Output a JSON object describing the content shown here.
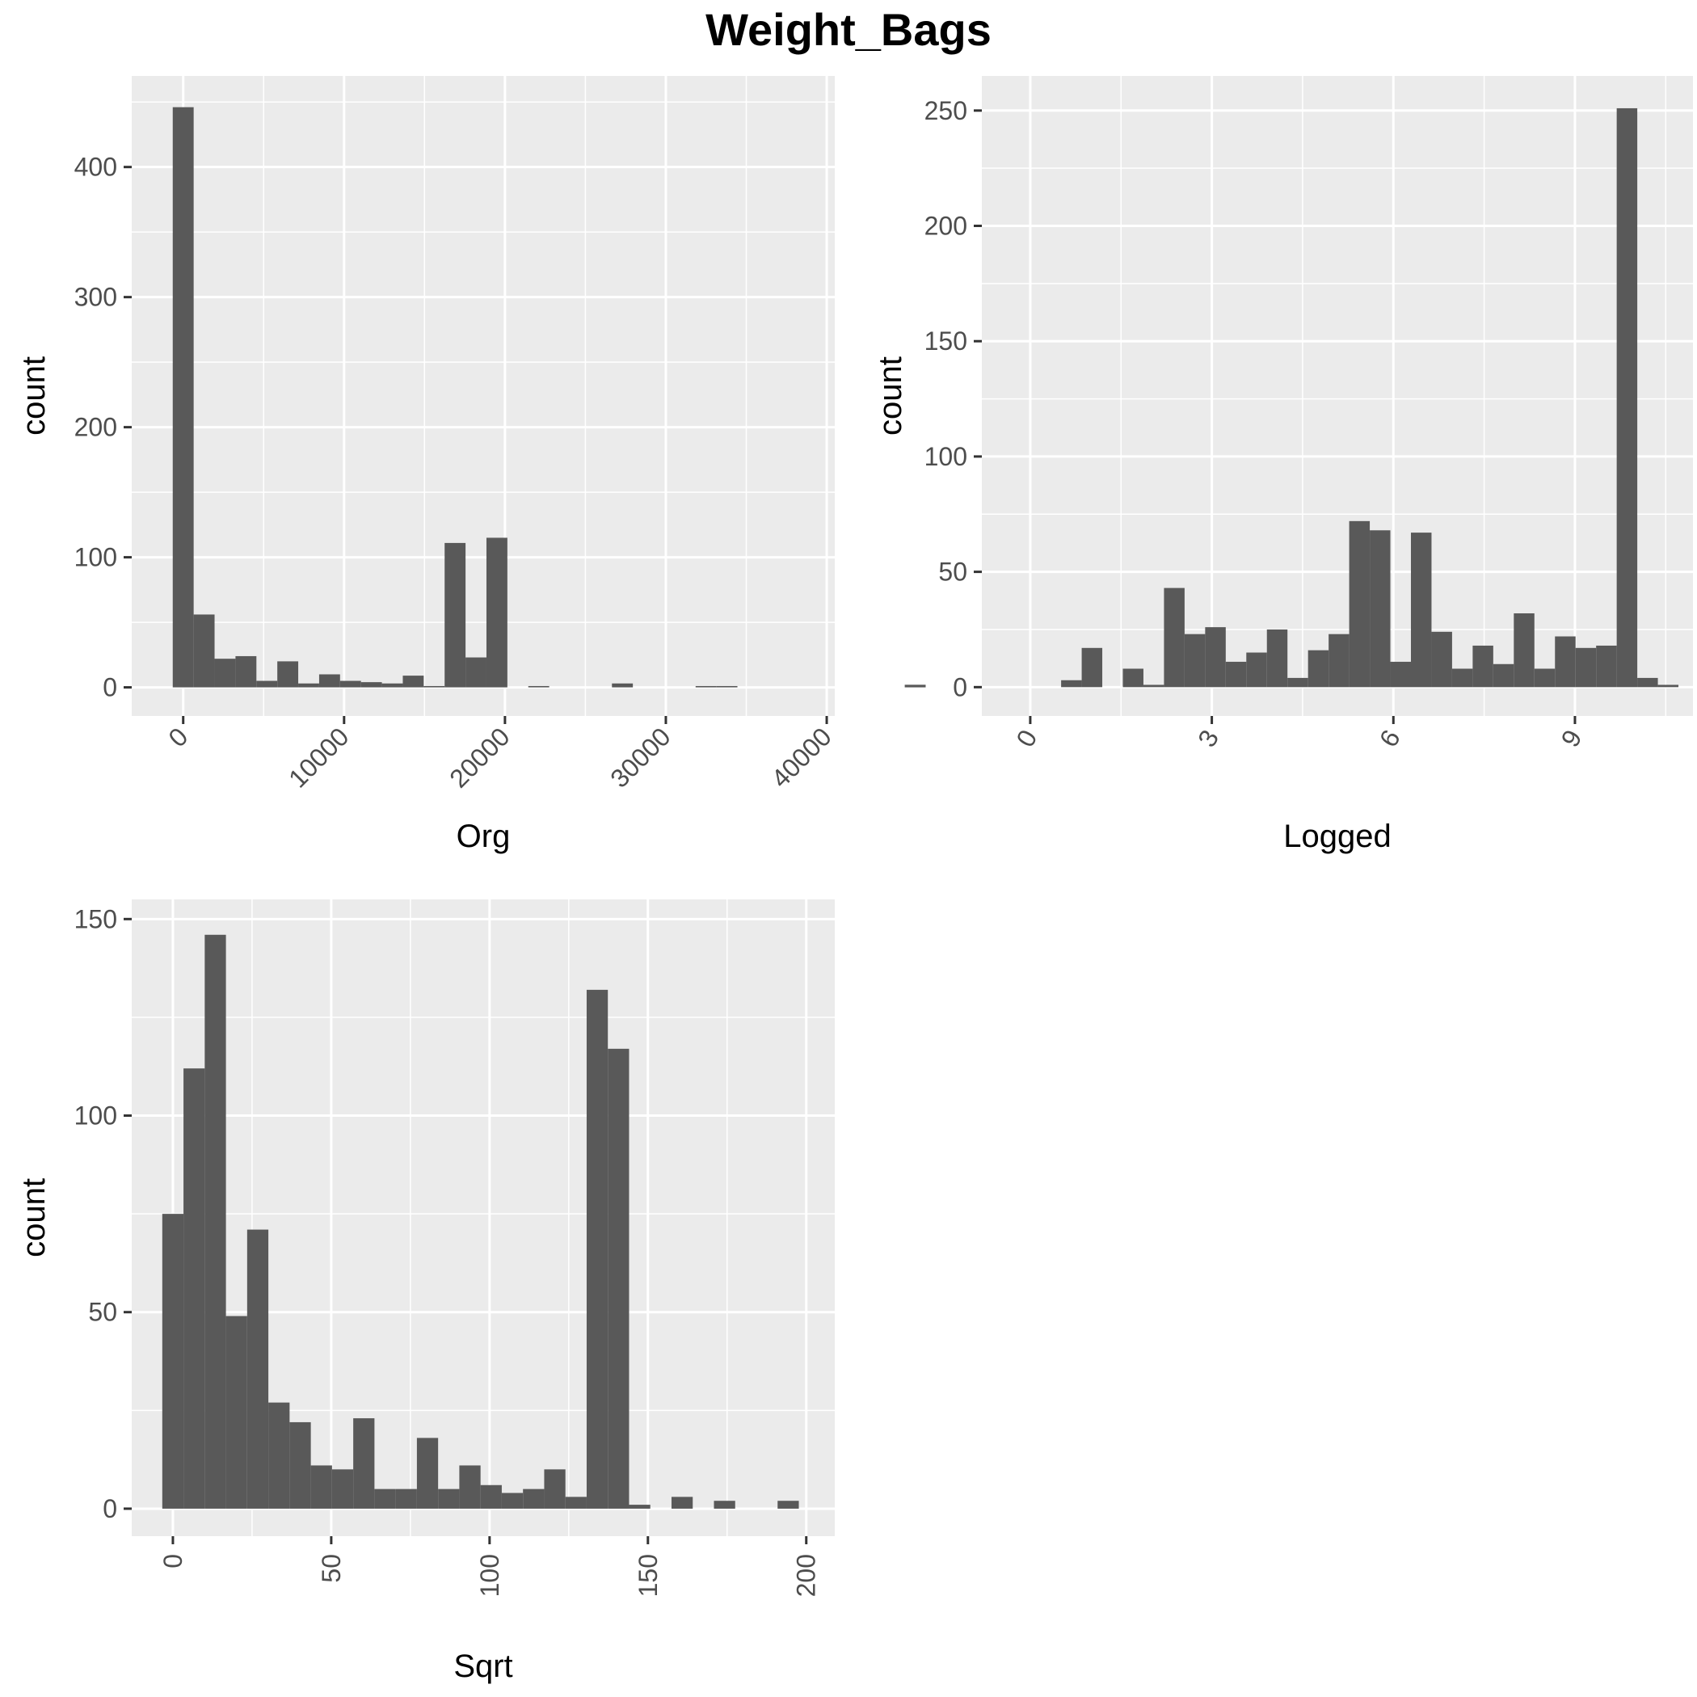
{
  "title": "Weight_Bags",
  "chart_data": [
    {
      "type": "bar",
      "subtype": "histogram",
      "xlabel": "Org",
      "ylabel": "count",
      "xlim": [
        -3200,
        40500
      ],
      "ylim": [
        -22,
        470
      ],
      "x_breaks": [
        0,
        10000,
        20000,
        30000,
        40000
      ],
      "x_tick_labels": [
        "0",
        "10000",
        "20000",
        "30000",
        "40000"
      ],
      "x_minor_breaks": [
        -5000,
        5000,
        15000,
        25000,
        35000
      ],
      "y_breaks": [
        0,
        100,
        200,
        300,
        400
      ],
      "y_tick_labels": [
        "0",
        "100",
        "200",
        "300",
        "400"
      ],
      "y_minor_breaks": [
        50,
        150,
        250,
        350,
        450
      ],
      "x_tick_angle": 45,
      "grid": true,
      "bin_width": 1300,
      "bin_start": -650,
      "values": [
        446,
        56,
        22,
        24,
        5,
        20,
        3,
        10,
        5,
        4,
        3,
        9,
        1,
        111,
        23,
        115,
        0,
        1,
        0,
        0,
        0,
        3,
        0,
        0,
        0,
        1,
        1,
        0,
        0,
        0,
        0,
        0,
        0,
        0,
        0,
        2
      ]
    },
    {
      "type": "bar",
      "subtype": "histogram",
      "xlabel": "Logged",
      "ylabel": "count",
      "xlim": [
        -0.8,
        10.95
      ],
      "ylim": [
        -12.5,
        265
      ],
      "x_breaks": [
        0,
        3,
        6,
        9
      ],
      "x_tick_labels": [
        "0",
        "3",
        "6",
        "9"
      ],
      "x_minor_breaks": [
        1.5,
        4.5,
        7.5,
        10.5
      ],
      "y_breaks": [
        0,
        50,
        100,
        150,
        200,
        250
      ],
      "y_tick_labels": [
        "0",
        "50",
        "100",
        "150",
        "200",
        "250"
      ],
      "y_minor_breaks": [
        25,
        75,
        125,
        175,
        225
      ],
      "x_tick_angle": 60,
      "grid": true,
      "bin_width": 0.34,
      "bin_start": 0.51,
      "values": [
        3,
        17,
        0,
        8,
        1,
        43,
        23,
        26,
        11,
        15,
        25,
        4,
        16,
        23,
        72,
        68,
        11,
        67,
        24,
        8,
        18,
        10,
        32,
        8,
        22,
        17,
        18,
        251,
        4,
        1
      ]
    },
    {
      "type": "bar",
      "subtype": "histogram",
      "xlabel": "Sqrt",
      "ylabel": "count",
      "xlim": [
        -13,
        209
      ],
      "ylim": [
        -7,
        155
      ],
      "x_breaks": [
        0,
        50,
        100,
        150,
        200
      ],
      "x_tick_labels": [
        "0",
        "50",
        "100",
        "150",
        "200"
      ],
      "x_minor_breaks": [
        25,
        75,
        125,
        175
      ],
      "y_breaks": [
        0,
        50,
        100,
        150
      ],
      "y_tick_labels": [
        "0",
        "50",
        "100",
        "150"
      ],
      "y_minor_breaks": [
        25,
        75,
        125
      ],
      "x_tick_angle": 90,
      "grid": true,
      "bin_width": 6.7,
      "bin_start": -3.35,
      "values": [
        75,
        112,
        146,
        49,
        71,
        27,
        22,
        11,
        10,
        23,
        5,
        5,
        18,
        5,
        11,
        6,
        4,
        5,
        10,
        3,
        132,
        117,
        1,
        0,
        3,
        0,
        2,
        0,
        0,
        2
      ]
    }
  ]
}
